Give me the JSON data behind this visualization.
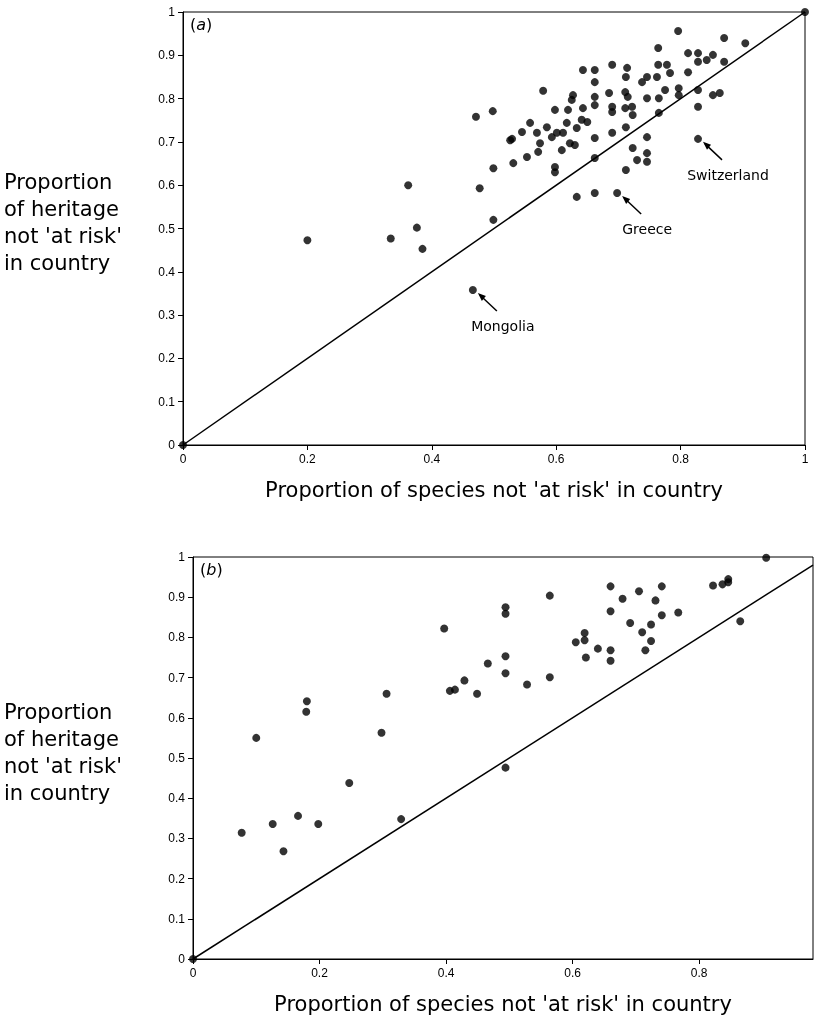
{
  "chart_data": [
    {
      "type": "scatter",
      "xlabel": "Proportion of species not 'at risk' in country",
      "ylabel": "Proportion of heritage not 'at risk' in country",
      "xlim": [
        0,
        1
      ],
      "ylim": [
        0,
        1
      ],
      "xticks": [
        0,
        0.2,
        0.4,
        0.6,
        0.8,
        1
      ],
      "yticks": [
        0,
        0.1,
        0.2,
        0.3,
        0.4,
        0.5,
        0.6,
        0.7,
        0.8,
        0.9,
        1
      ],
      "marker": "circle",
      "annotations": [
        "(a)",
        {
          "text": "Mongolia",
          "x": 0.466,
          "y": 0.358
        },
        {
          "text": "Greece",
          "x": 0.698,
          "y": 0.582
        },
        {
          "text": "Switzerland",
          "x": 0.828,
          "y": 0.707
        }
      ],
      "series": [
        {
          "type": "line",
          "marker": "none",
          "line_style": "solid",
          "color": "#000000",
          "x": [
            0,
            1
          ],
          "values": [
            0,
            1
          ]
        },
        {
          "type": "scatter",
          "color": "#000000",
          "x": [
            0,
            1,
            0.2,
            0.334,
            0.362,
            0.376,
            0.385,
            0.466,
            0.477,
            0.499,
            0.499,
            0.526,
            0.471,
            0.498,
            0.529,
            0.531,
            0.553,
            0.545,
            0.558,
            0.569,
            0.571,
            0.574,
            0.585,
            0.593,
            0.598,
            0.598,
            0.601,
            0.598,
            0.609,
            0.611,
            0.579,
            0.619,
            0.625,
            0.627,
            0.617,
            0.622,
            0.63,
            0.633,
            0.643,
            0.641,
            0.65,
            0.643,
            0.662,
            0.662,
            0.662,
            0.662,
            0.662,
            0.662,
            0.662,
            0.633,
            0.698,
            0.69,
            0.685,
            0.69,
            0.69,
            0.69,
            0.714,
            0.712,
            0.711,
            0.715,
            0.711,
            0.722,
            0.723,
            0.712,
            0.723,
            0.73,
            0.712,
            0.746,
            0.746,
            0.746,
            0.738,
            0.746,
            0.746,
            0.764,
            0.764,
            0.762,
            0.765,
            0.765,
            0.775,
            0.778,
            0.783,
            0.796,
            0.797,
            0.797,
            0.812,
            0.812,
            0.828,
            0.828,
            0.828,
            0.828,
            0.828,
            0.842,
            0.852,
            0.852,
            0.863,
            0.87,
            0.87,
            0.904
          ],
          "values": [
            0,
            1,
            0.473,
            0.477,
            0.6,
            0.502,
            0.453,
            0.358,
            0.593,
            0.639,
            0.52,
            0.704,
            0.758,
            0.771,
            0.707,
            0.651,
            0.665,
            0.723,
            0.744,
            0.721,
            0.677,
            0.697,
            0.734,
            0.711,
            0.642,
            0.63,
            0.721,
            0.774,
            0.681,
            0.721,
            0.818,
            0.774,
            0.797,
            0.808,
            0.744,
            0.697,
            0.693,
            0.732,
            0.778,
            0.751,
            0.746,
            0.866,
            0.866,
            0.838,
            0.804,
            0.785,
            0.709,
            0.663,
            0.582,
            0.573,
            0.582,
            0.878,
            0.813,
            0.781,
            0.769,
            0.721,
            0.871,
            0.85,
            0.815,
            0.804,
            0.778,
            0.781,
            0.762,
            0.734,
            0.686,
            0.658,
            0.635,
            0.711,
            0.674,
            0.654,
            0.838,
            0.85,
            0.801,
            0.917,
            0.878,
            0.85,
            0.801,
            0.767,
            0.82,
            0.878,
            0.859,
            0.956,
            0.824,
            0.808,
            0.905,
            0.861,
            0.905,
            0.885,
            0.82,
            0.781,
            0.707,
            0.889,
            0.901,
            0.808,
            0.813,
            0.94,
            0.885,
            0.928
          ]
        }
      ]
    },
    {
      "type": "scatter",
      "xlabel": "Proportion of species not 'at risk' in country",
      "ylabel": "Proportion of heritage not 'at risk' in country",
      "xlim": [
        0,
        0.98
      ],
      "ylim": [
        0,
        1
      ],
      "xticks": [
        0,
        0.2,
        0.4,
        0.6,
        0.8
      ],
      "yticks": [
        0,
        0.1,
        0.2,
        0.3,
        0.4,
        0.5,
        0.6,
        0.7,
        0.8,
        0.9,
        1
      ],
      "marker": "circle",
      "annotations": [
        "(b)"
      ],
      "series": [
        {
          "type": "line",
          "marker": "none",
          "line_style": "solid",
          "color": "#000000",
          "x": [
            0,
            0.98
          ],
          "values": [
            0,
            0.98
          ]
        },
        {
          "type": "scatter",
          "color": "#000000",
          "x": [
            0,
            0.077,
            0.1,
            0.126,
            0.143,
            0.166,
            0.18,
            0.179,
            0.198,
            0.247,
            0.298,
            0.306,
            0.329,
            0.397,
            0.406,
            0.414,
            0.429,
            0.449,
            0.466,
            0.494,
            0.494,
            0.494,
            0.494,
            0.494,
            0.528,
            0.564,
            0.564,
            0.605,
            0.619,
            0.619,
            0.621,
            0.64,
            0.66,
            0.66,
            0.66,
            0.66,
            0.679,
            0.691,
            0.705,
            0.71,
            0.715,
            0.724,
            0.724,
            0.731,
            0.741,
            0.741,
            0.767,
            0.822,
            0.837,
            0.846,
            0.846,
            0.865,
            0.906
          ],
          "values": [
            0,
            0.314,
            0.55,
            0.336,
            0.268,
            0.356,
            0.641,
            0.615,
            0.336,
            0.438,
            0.563,
            0.66,
            0.348,
            0.822,
            0.667,
            0.67,
            0.693,
            0.66,
            0.735,
            0.875,
            0.859,
            0.753,
            0.711,
            0.476,
            0.683,
            0.904,
            0.701,
            0.788,
            0.811,
            0.793,
            0.75,
            0.772,
            0.927,
            0.865,
            0.768,
            0.742,
            0.896,
            0.836,
            0.915,
            0.813,
            0.768,
            0.832,
            0.791,
            0.892,
            0.927,
            0.855,
            0.862,
            0.929,
            0.932,
            0.945,
            0.937,
            0.84,
            0.998
          ]
        }
      ]
    }
  ]
}
